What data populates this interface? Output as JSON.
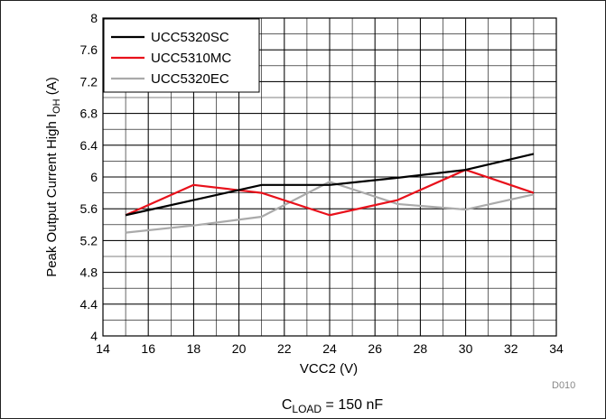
{
  "chart_data": {
    "type": "line",
    "title": "",
    "xlabel": "VCC2 (V)",
    "ylabel": {
      "main": "Peak Output Current High I",
      "sub": "OH",
      "suffix": " (A)"
    },
    "xlim": [
      14,
      34
    ],
    "ylim": [
      4,
      8
    ],
    "x_ticks": [
      14,
      16,
      18,
      20,
      22,
      24,
      26,
      28,
      30,
      32,
      34
    ],
    "y_ticks": [
      4,
      4.4,
      4.8,
      5.2,
      5.6,
      6,
      6.4,
      6.8,
      7.2,
      7.6,
      8
    ],
    "x_minor_step": 1,
    "y_minor_step": 0.2,
    "grid": true,
    "legend_position": "top-left",
    "series": [
      {
        "name": "UCC5320SC",
        "color": "#000000",
        "x": [
          15,
          18,
          21,
          24,
          27,
          30,
          33
        ],
        "y": [
          5.52,
          5.71,
          5.9,
          5.9,
          5.99,
          6.09,
          6.29
        ]
      },
      {
        "name": "UCC5310MC",
        "color": "#e8111b",
        "x": [
          15,
          18,
          21,
          24,
          27,
          30,
          33
        ],
        "y": [
          5.52,
          5.9,
          5.8,
          5.52,
          5.71,
          6.09,
          5.8
        ]
      },
      {
        "name": "UCC5320EC",
        "color": "#aaaaaa",
        "x": [
          15,
          18,
          21,
          24,
          27,
          30,
          33
        ],
        "y": [
          5.3,
          5.39,
          5.5,
          5.94,
          5.66,
          5.59,
          5.78
        ]
      }
    ],
    "code": "D010",
    "caption": {
      "main": "C",
      "sub": "LOAD",
      "suffix": " = 150 nF"
    }
  }
}
